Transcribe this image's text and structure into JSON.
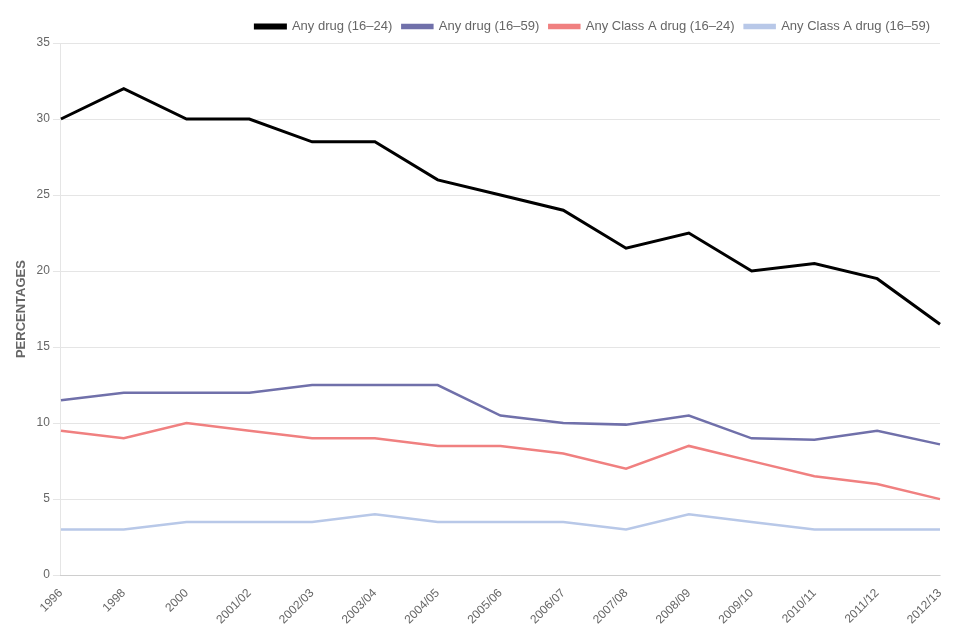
{
  "chart_data": {
    "type": "line",
    "ylabel": "PERCENTAGES",
    "categories": [
      "1996",
      "1998",
      "2000",
      "2001/02",
      "2002/03",
      "2003/04",
      "2004/05",
      "2005/06",
      "2006/07",
      "2007/08",
      "2008/09",
      "2009/10",
      "2010/11",
      "2011/12",
      "2012/13"
    ],
    "series": [
      {
        "name": "Any drug (16–24)",
        "color": "#000000",
        "values": [
          30.0,
          32.0,
          30.0,
          30.0,
          28.5,
          28.5,
          26.0,
          25.0,
          24.0,
          21.5,
          22.5,
          20.0,
          20.5,
          19.5,
          16.5
        ]
      },
      {
        "name": "Any drug (16–59)",
        "color": "#7070aa",
        "values": [
          11.5,
          12.0,
          12.0,
          12.0,
          12.5,
          12.5,
          12.5,
          10.5,
          10.0,
          9.9,
          10.5,
          9.0,
          8.9,
          9.5,
          8.6
        ]
      },
      {
        "name": "Any Class A drug (16–24)",
        "color": "#f08080",
        "values": [
          9.5,
          9.0,
          10.0,
          9.5,
          9.0,
          9.0,
          8.5,
          8.5,
          8.0,
          7.0,
          8.5,
          7.5,
          6.5,
          6.0,
          5.0
        ]
      },
      {
        "name": "Any Class A drug (16–59)",
        "color": "#b8c8e8",
        "values": [
          3.0,
          3.0,
          3.5,
          3.5,
          3.5,
          4.0,
          3.5,
          3.5,
          3.5,
          3.0,
          4.0,
          3.5,
          3.0,
          3.0,
          3.0
        ]
      }
    ],
    "ylim": [
      0,
      35
    ],
    "yticks": [
      0,
      5,
      10,
      15,
      20,
      25,
      30,
      35
    ],
    "grid": true,
    "legend": "upper right"
  }
}
